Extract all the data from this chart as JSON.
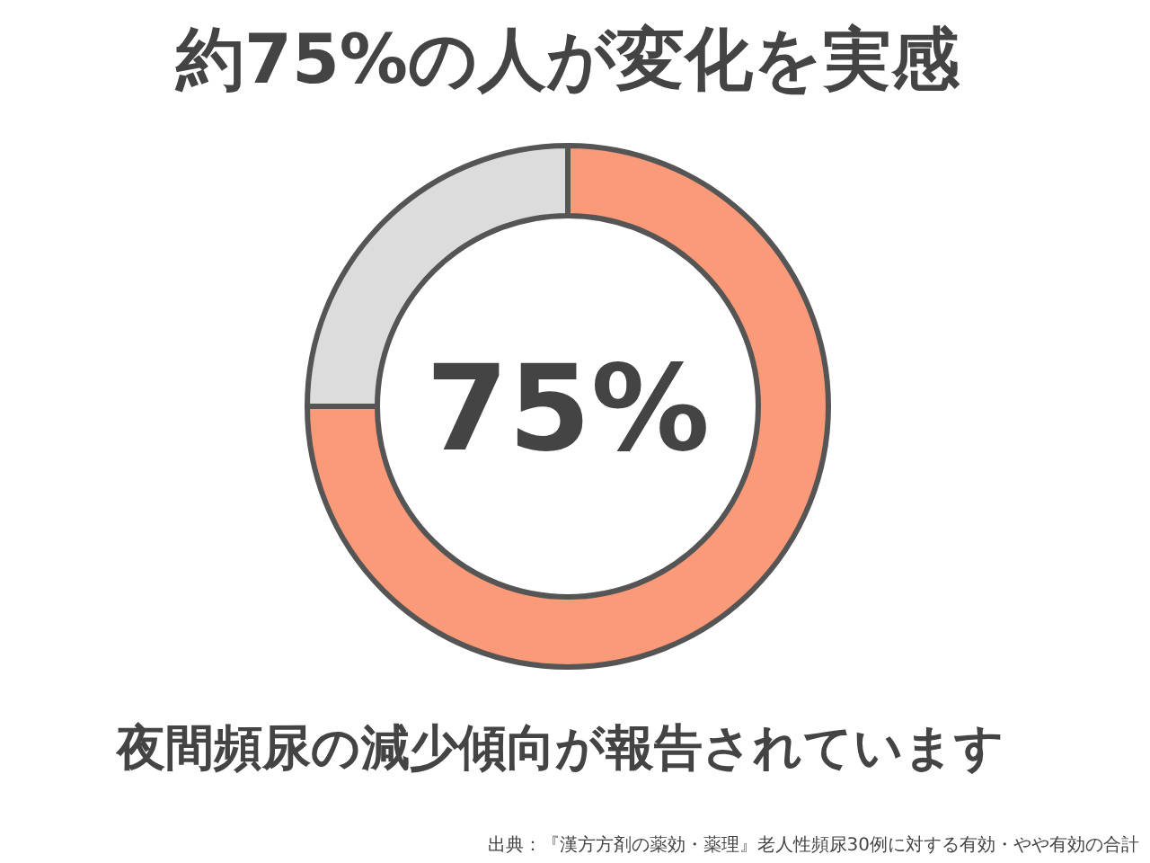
{
  "chart_data": {
    "type": "donut",
    "title": "約75%の人が変化を実感",
    "categories": [
      null,
      null
    ],
    "values": [
      75,
      25
    ],
    "colors": [
      "#fa9a78",
      "#dcdcdc"
    ],
    "value_labels": [
      "75%",
      null
    ],
    "annotations": [
      "夜間頻尿の減少傾向が報告されています",
      "出典：『漢方方剤の薬効・薬理』老人性頻尿30例に対する有効・やや有効の合計"
    ]
  }
}
